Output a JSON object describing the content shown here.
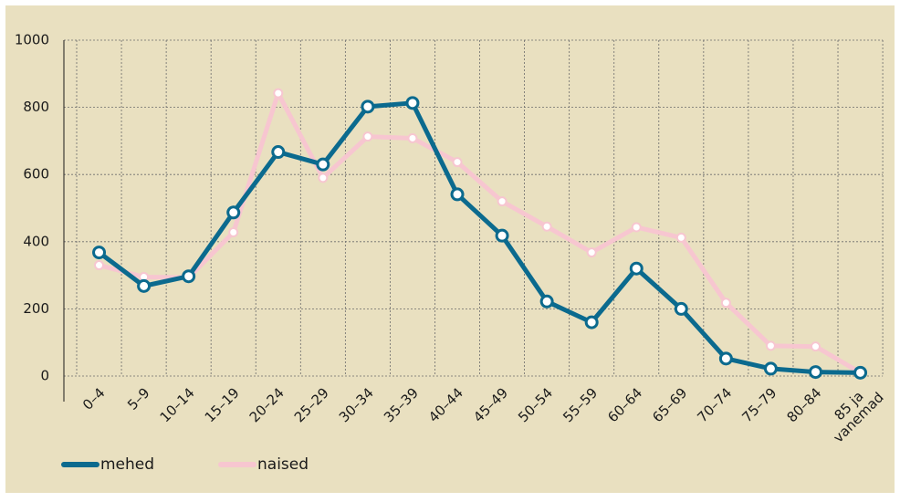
{
  "chart_data": {
    "type": "line",
    "categories": [
      "0–4",
      "5–9",
      "10–14",
      "15–19",
      "20–24",
      "25–29",
      "30–34",
      "35–39",
      "40–44",
      "45–49",
      "50–54",
      "55–59",
      "60–64",
      "65–69",
      "70–74",
      "75–79",
      "80–84",
      "85 ja vanemad"
    ],
    "series": [
      {
        "name": "mehed",
        "color": "#0b6a8e",
        "values": [
          368,
          268,
          297,
          487,
          667,
          630,
          802,
          813,
          541,
          418,
          222,
          160,
          320,
          200,
          52,
          22,
          12,
          10
        ]
      },
      {
        "name": "naised",
        "color": "#f7c6d0",
        "values": [
          330,
          295,
          293,
          428,
          842,
          590,
          713,
          708,
          637,
          520,
          445,
          368,
          443,
          412,
          218,
          90,
          88,
          10
        ]
      }
    ],
    "ylim": [
      0,
      1000
    ],
    "yticks": [
      0,
      200,
      400,
      600,
      800,
      1000
    ],
    "grid": true,
    "legend": "bottom-left"
  }
}
